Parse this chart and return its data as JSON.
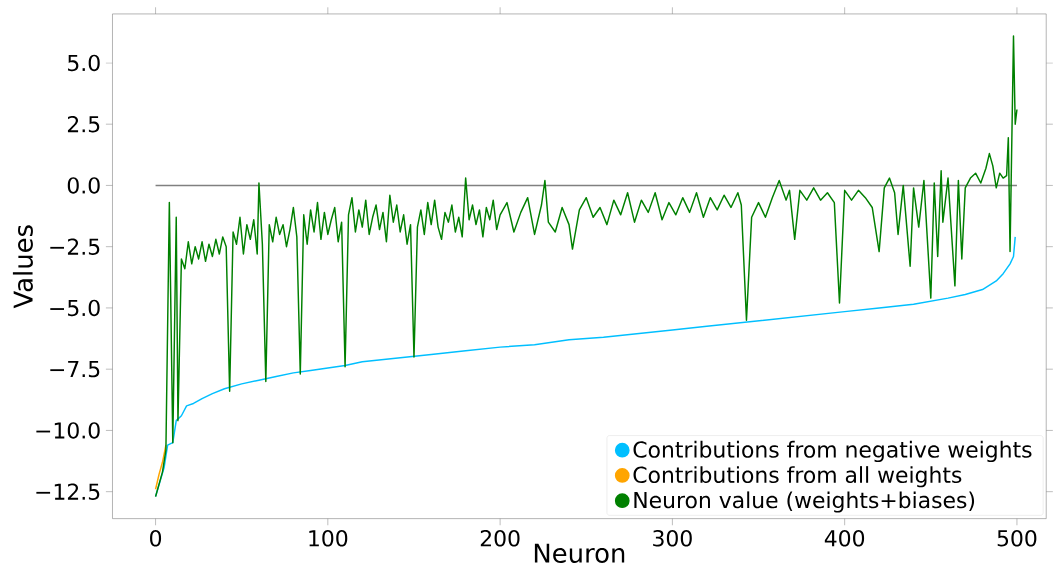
{
  "chart_data": {
    "type": "line",
    "xlabel": "Neuron",
    "ylabel": "Values",
    "xlim": [
      -25,
      517
    ],
    "ylim": [
      -13.6,
      7.0
    ],
    "xticks": [
      0,
      100,
      200,
      300,
      400,
      500
    ],
    "yticks": [
      {
        "value": -12.5,
        "label": "−12.5"
      },
      {
        "value": -10,
        "label": "−10.0"
      },
      {
        "value": -7.5,
        "label": "−7.5"
      },
      {
        "value": -5,
        "label": "−5.0"
      },
      {
        "value": -2.5,
        "label": "−2.5"
      },
      {
        "value": 0,
        "label": "0.0"
      },
      {
        "value": 2.5,
        "label": "2.5"
      },
      {
        "value": 5,
        "label": "5.0"
      }
    ],
    "legend": "bottom right",
    "marker": "none",
    "line_style": "solid",
    "grid": false,
    "x": [
      0,
      2,
      4,
      6,
      8,
      10,
      12,
      13,
      15,
      17,
      19,
      21,
      23,
      25,
      27,
      29,
      31,
      33,
      35,
      37,
      39,
      41,
      43,
      45,
      47,
      49,
      51,
      53,
      55,
      57,
      59,
      60,
      62,
      64,
      66,
      68,
      70,
      72,
      74,
      76,
      78,
      80,
      82,
      84,
      86,
      88,
      90,
      92,
      94,
      96,
      98,
      100,
      102,
      104,
      106,
      108,
      110,
      112,
      114,
      116,
      118,
      120,
      122,
      124,
      126,
      128,
      130,
      132,
      134,
      136,
      138,
      140,
      142,
      144,
      146,
      148,
      150,
      152,
      154,
      156,
      158,
      160,
      162,
      164,
      166,
      168,
      170,
      172,
      174,
      176,
      178,
      180,
      182,
      184,
      186,
      188,
      190,
      192,
      194,
      196,
      198,
      200,
      204,
      208,
      212,
      216,
      220,
      224,
      226,
      228,
      232,
      236,
      240,
      242,
      246,
      250,
      254,
      258,
      262,
      266,
      270,
      274,
      278,
      282,
      286,
      290,
      294,
      298,
      302,
      306,
      310,
      314,
      318,
      322,
      326,
      330,
      334,
      338,
      340,
      343,
      346,
      350,
      354,
      358,
      362,
      366,
      368,
      371,
      374,
      378,
      382,
      386,
      390,
      394,
      397,
      400,
      404,
      408,
      412,
      416,
      420,
      423,
      426,
      429,
      431,
      434,
      438,
      440,
      443,
      446,
      450,
      452,
      454,
      456,
      457,
      460,
      464,
      466,
      468,
      470,
      473,
      476,
      479,
      482,
      484,
      486,
      488,
      490,
      492,
      494,
      495,
      496,
      498,
      499,
      500
    ],
    "series": [
      {
        "color": "#808080",
        "x": [
          0,
          500
        ],
        "values": [
          0,
          0
        ]
      },
      {
        "name": "Contributions from negative weights",
        "color": "#00bfff",
        "x": [
          0,
          5,
          7,
          10,
          12,
          15,
          18,
          22,
          27,
          33,
          40,
          50,
          60,
          70,
          80,
          90,
          100,
          110,
          120,
          140,
          160,
          180,
          200,
          220,
          240,
          260,
          280,
          300,
          320,
          340,
          360,
          380,
          400,
          420,
          440,
          460,
          470,
          480,
          488,
          492,
          496,
          498,
          499
        ],
        "values": [
          -12.7,
          -11.5,
          -10.6,
          -10.5,
          -9.6,
          -9.4,
          -9.0,
          -8.9,
          -8.7,
          -8.5,
          -8.3,
          -8.1,
          -7.95,
          -7.8,
          -7.65,
          -7.55,
          -7.45,
          -7.35,
          -7.2,
          -7.05,
          -6.9,
          -6.75,
          -6.6,
          -6.5,
          -6.3,
          -6.2,
          -6.05,
          -5.9,
          -5.75,
          -5.6,
          -5.45,
          -5.3,
          -5.15,
          -5.0,
          -4.85,
          -4.6,
          -4.45,
          -4.25,
          -3.9,
          -3.6,
          -3.2,
          -2.9,
          -2.1
        ]
      },
      {
        "name": "Contributions from all weights",
        "color": "#ffa500",
        "x": [
          0,
          2,
          4,
          6
        ],
        "values": [
          -12.4,
          -11.8,
          -11.3,
          -10.6
        ]
      },
      {
        "name": "Neuron value (weights+biases)",
        "color": "#008000",
        "values": [
          -12.7,
          -12.2,
          -11.7,
          -10.8,
          -0.7,
          -10.5,
          -1.3,
          -9.6,
          -3.0,
          -3.4,
          -2.3,
          -3.2,
          -2.5,
          -3.0,
          -2.3,
          -3.1,
          -2.4,
          -2.9,
          -2.2,
          -2.8,
          -2.1,
          -2.5,
          -8.4,
          -1.9,
          -2.4,
          -1.3,
          -2.8,
          -1.6,
          -2.2,
          -1.4,
          -2.8,
          0.1,
          -2.4,
          -8.0,
          -1.6,
          -2.3,
          -1.3,
          -2.0,
          -1.6,
          -2.5,
          -1.8,
          -0.9,
          -2.1,
          -7.7,
          -1.2,
          -2.4,
          -1.0,
          -1.9,
          -0.7,
          -2.2,
          -1.1,
          -2.0,
          -1.4,
          -0.9,
          -2.3,
          -1.5,
          -7.4,
          -1.2,
          -0.5,
          -1.9,
          -1.0,
          -1.7,
          -0.6,
          -2.0,
          -1.3,
          -0.8,
          -1.8,
          -1.1,
          -2.3,
          -0.4,
          -1.5,
          -0.8,
          -1.9,
          -1.2,
          -2.4,
          -1.6,
          -7.0,
          -1.7,
          -1.0,
          -2.0,
          -0.7,
          -1.6,
          -0.6,
          -1.7,
          -2.2,
          -1.1,
          -1.5,
          -0.8,
          -1.9,
          -1.3,
          -2.1,
          0.3,
          -1.4,
          -0.8,
          -1.6,
          -1.0,
          -2.1,
          -0.9,
          -1.4,
          -0.6,
          -1.8,
          -1.2,
          -0.7,
          -1.9,
          -1.1,
          -0.5,
          -2.0,
          -0.8,
          0.2,
          -1.5,
          -1.9,
          -0.9,
          -1.6,
          -2.6,
          -1.0,
          -0.5,
          -1.3,
          -0.9,
          -1.6,
          -0.6,
          -1.2,
          -0.3,
          -1.5,
          -0.6,
          -1.1,
          -0.3,
          -1.4,
          -0.7,
          -1.2,
          -0.5,
          -1.1,
          -0.3,
          -1.3,
          -0.5,
          -1.0,
          -0.4,
          -0.9,
          -0.3,
          -0.8,
          -5.5,
          -1.3,
          -0.7,
          -1.3,
          -0.5,
          0.2,
          -0.6,
          -0.2,
          -2.2,
          -0.2,
          -0.6,
          -0.1,
          -0.6,
          -0.3,
          -0.7,
          -4.8,
          -0.2,
          -0.6,
          -0.2,
          -0.5,
          -0.9,
          -2.7,
          -0.1,
          0.3,
          -0.3,
          -2.0,
          0.0,
          -3.3,
          -0.1,
          -1.7,
          0.2,
          -4.6,
          0.1,
          -2.9,
          0.6,
          -1.5,
          0.3,
          -4.1,
          0.2,
          -3.0,
          -0.1,
          0.3,
          0.5,
          0.1,
          0.7,
          1.3,
          0.8,
          -0.1,
          0.5,
          0.3,
          0.4,
          1.95,
          -2.7,
          6.1,
          2.5,
          3.1
        ]
      }
    ]
  }
}
